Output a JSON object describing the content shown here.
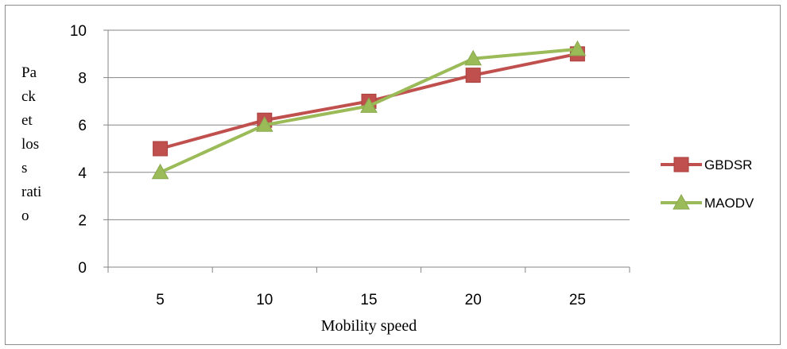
{
  "chart_data": {
    "type": "line",
    "title": "",
    "xlabel": "Mobility speed",
    "ylabel_lines": [
      "Pa",
      "ck",
      "et",
      "los",
      "s",
      "rati",
      "o"
    ],
    "x": [
      5,
      10,
      15,
      20,
      25
    ],
    "ylim": [
      0,
      10
    ],
    "yticks": [
      0,
      2,
      4,
      6,
      8,
      10
    ],
    "grid": true,
    "legend_position": "right",
    "series": [
      {
        "name": "GBDSR",
        "marker": "square",
        "color": "#c0504d",
        "values": [
          5.0,
          6.2,
          7.0,
          8.1,
          9.0
        ]
      },
      {
        "name": "MAODV",
        "marker": "triangle",
        "color": "#9bbb59",
        "values": [
          4.0,
          6.0,
          6.8,
          8.8,
          9.2
        ]
      }
    ]
  }
}
